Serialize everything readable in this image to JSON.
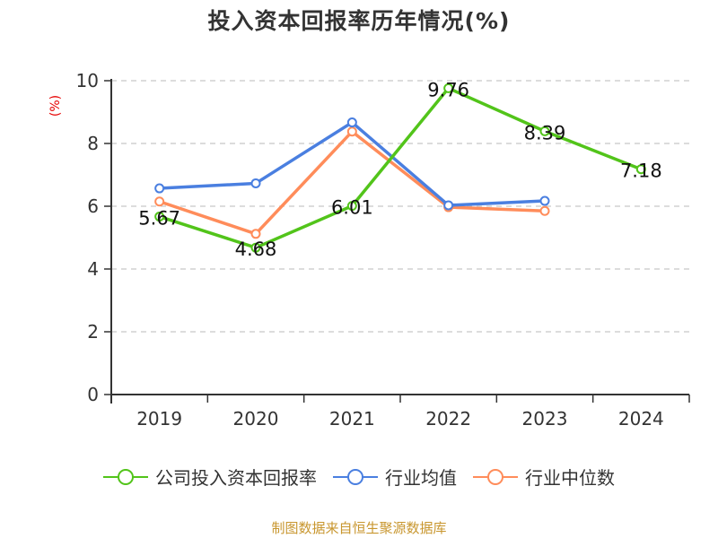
{
  "title": "投入资本回报率历年情况(%)",
  "y_unit_label": "(%)",
  "source": "制图数据来自恒生聚源数据库",
  "colors": {
    "company": "#52c41a",
    "industry_avg": "#4a7fe0",
    "industry_median": "#ff8c5a",
    "axis": "#333333",
    "grid": "#c8c8c8",
    "unit_label": "#e60000",
    "source": "#c8962e"
  },
  "legend": [
    {
      "name": "公司投入资本回报率",
      "color": "#52c41a"
    },
    {
      "name": "行业均值",
      "color": "#4a7fe0"
    },
    {
      "name": "行业中位数",
      "color": "#ff8c5a"
    }
  ],
  "chart_data": {
    "type": "line",
    "title": "投入资本回报率历年情况(%)",
    "xlabel": "",
    "ylabel": "(%)",
    "categories": [
      "2019",
      "2020",
      "2021",
      "2022",
      "2023",
      "2024"
    ],
    "ylim": [
      0,
      10
    ],
    "yticks": [
      0,
      2,
      4,
      6,
      8,
      10
    ],
    "grid": "horizontal dashed",
    "legend_position": "bottom",
    "series": [
      {
        "name": "公司投入资本回报率",
        "values": [
          5.67,
          4.68,
          6.01,
          9.76,
          8.39,
          7.18
        ],
        "labels_shown": true
      },
      {
        "name": "行业均值",
        "values": [
          6.57,
          6.73,
          8.67,
          6.03,
          6.17,
          null
        ]
      },
      {
        "name": "行业中位数",
        "values": [
          6.15,
          5.12,
          8.38,
          5.97,
          5.85,
          null
        ]
      }
    ]
  }
}
